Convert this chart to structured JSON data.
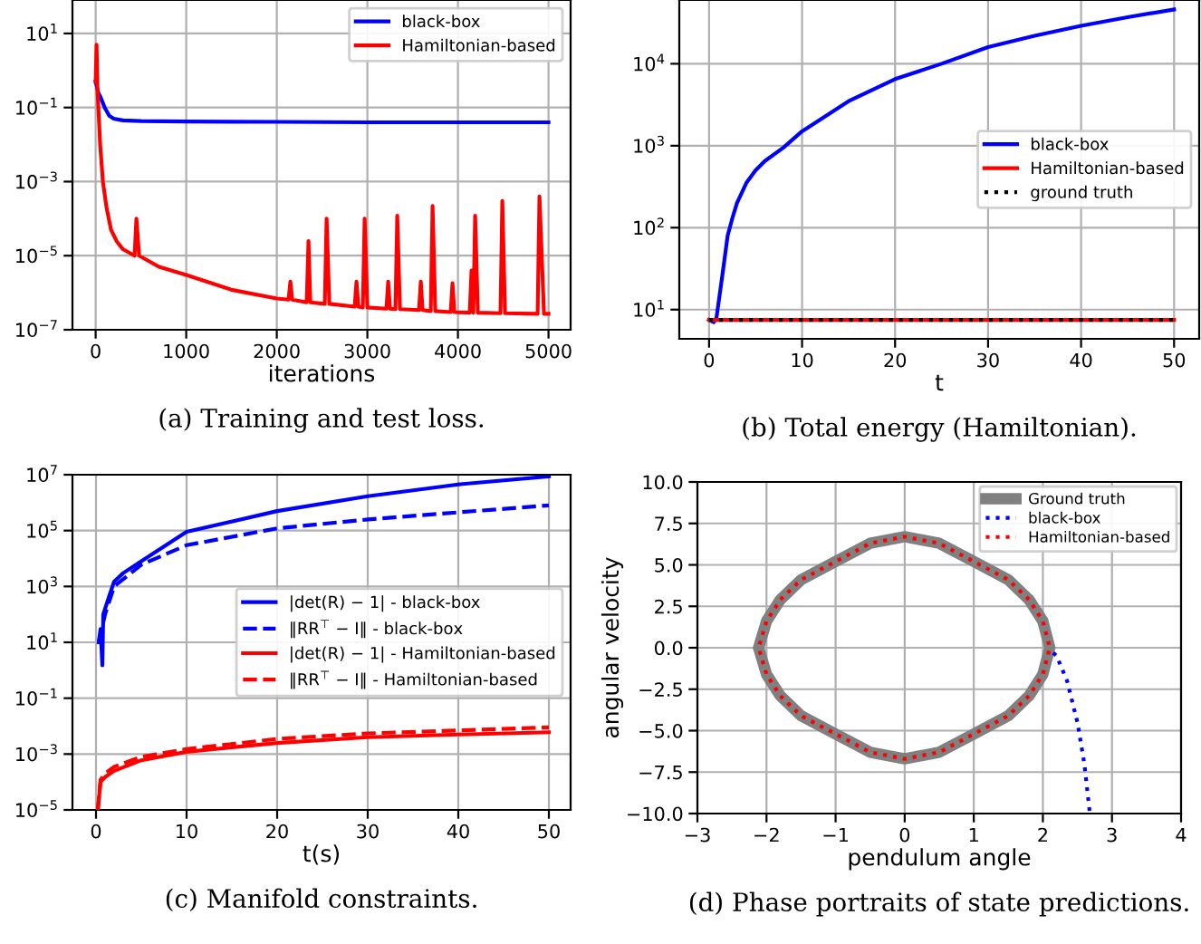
{
  "chart_data": [
    {
      "type": "line",
      "title": "(a) Training and test loss.",
      "xlabel": "iterations",
      "log": "y",
      "grid": true,
      "legend": "top right",
      "xlim": [
        -256,
        5244
      ],
      "ylim": [
        1e-07,
        80
      ],
      "xticks": [
        0,
        1000,
        2000,
        3000,
        4000,
        5000
      ],
      "yticks": [
        {
          "value": 1e-07,
          "label": "10$^{−7}$"
        },
        {
          "value": 1e-05,
          "label": "10$^{−5}$"
        },
        {
          "value": 0.001,
          "label": "10$^{−3}$"
        },
        {
          "value": 0.1,
          "label": "10$^{−1}$"
        },
        {
          "value": 10,
          "label": "10$^{1}$"
        }
      ],
      "series": [
        {
          "name": "black-box",
          "color": "#0000ff",
          "x": [
            0,
            30,
            50,
            100,
            150,
            200,
            300,
            500,
            1000,
            2000,
            3000,
            4000,
            5000
          ],
          "values": [
            0.5,
            0.25,
            0.2,
            0.1,
            0.06,
            0.05,
            0.045,
            0.043,
            0.042,
            0.041,
            0.04,
            0.04,
            0.04
          ]
        },
        {
          "name": "Hamiltonian-based",
          "color": "#ff0000",
          "x": [
            0,
            10,
            20,
            50,
            80,
            120,
            170,
            230,
            300,
            430,
            450,
            480,
            700,
            1000,
            1500,
            2000,
            2130,
            2150,
            2170,
            2330,
            2350,
            2370,
            2530,
            2550,
            2580,
            2860,
            2880,
            2900,
            2950,
            2970,
            3000,
            3210,
            3230,
            3250,
            3310,
            3330,
            3360,
            3570,
            3590,
            3610,
            3700,
            3720,
            3750,
            3920,
            3940,
            3960,
            4130,
            4150,
            4170,
            4190,
            4220,
            4470,
            4490,
            4520,
            4880,
            4900,
            4950,
            5000
          ],
          "values": [
            0.5,
            5,
            0.3,
            0.01,
            0.001,
            0.0002,
            5e-05,
            2.5e-05,
            1.5e-05,
            1e-05,
            0.0001,
            1e-05,
            5e-06,
            3e-06,
            1.2e-06,
            7e-07,
            6.5e-07,
            2e-06,
            6.5e-07,
            5.5e-07,
            2.5e-05,
            5.5e-07,
            5e-07,
            0.0001,
            5e-07,
            4.2e-07,
            2e-06,
            4.2e-07,
            4e-07,
            0.0001,
            4e-07,
            3.7e-07,
            2e-06,
            3.7e-07,
            3.6e-07,
            0.00012,
            3.6e-07,
            3.4e-07,
            2e-06,
            3.4e-07,
            3.2e-07,
            0.00022,
            3.2e-07,
            3e-07,
            1.8e-06,
            3e-07,
            2.9e-07,
            4e-06,
            2.9e-07,
            0.00012,
            2.9e-07,
            2.8e-07,
            0.0003,
            2.8e-07,
            2.7e-07,
            0.0004,
            2.7e-07,
            2.7e-07
          ]
        }
      ]
    },
    {
      "type": "line",
      "title": "(b) Total energy (Hamiltonian).",
      "xlabel": "t",
      "log": "y",
      "grid": true,
      "legend": "right",
      "xlim": [
        -3.2,
        52.7
      ],
      "ylim": [
        4.4,
        60000
      ],
      "xticks": [
        0,
        10,
        20,
        30,
        40,
        50
      ],
      "yticks": [
        {
          "value": 10,
          "label": "10$^{1}$"
        },
        {
          "value": 100,
          "label": "10$^{2}$"
        },
        {
          "value": 1000,
          "label": "10$^{3}$"
        },
        {
          "value": 10000,
          "label": "10$^{4}$"
        }
      ],
      "series": [
        {
          "name": "black-box",
          "color": "#0000ff",
          "x": [
            0,
            0.5,
            0.8,
            1.5,
            2,
            2.5,
            3,
            4,
            5,
            6,
            8,
            10,
            15,
            20,
            25,
            30,
            35,
            40,
            45,
            50
          ],
          "values": [
            7.5,
            7,
            8,
            30,
            80,
            130,
            200,
            350,
            500,
            650,
            950,
            1500,
            3500,
            6500,
            10000,
            16000,
            22000,
            29000,
            37000,
            46000
          ]
        },
        {
          "name": "Hamiltonian-based",
          "color": "#ff0000",
          "x": [
            0,
            50
          ],
          "values": [
            7.5,
            7.5
          ]
        },
        {
          "name": "ground truth",
          "color": "#000000",
          "line_style": "dotted",
          "x": [
            0,
            50
          ],
          "values": [
            7.5,
            7.5
          ]
        }
      ]
    },
    {
      "type": "line",
      "title": "(c) Manifold constraints.",
      "xlabel": "t(s)",
      "log": "y",
      "grid": true,
      "legend": "right",
      "xlim": [
        -2.6,
        52.4
      ],
      "ylim": [
        1e-05,
        10000000.0
      ],
      "xticks": [
        0,
        10,
        20,
        30,
        40,
        50
      ],
      "yticks": [
        {
          "value": 1e-05,
          "label": "10$^{−5}$"
        },
        {
          "value": 0.001,
          "label": "10$^{−3}$"
        },
        {
          "value": 0.1,
          "label": "10$^{−1}$"
        },
        {
          "value": 10,
          "label": "10$^{1}$"
        },
        {
          "value": 1000,
          "label": "10$^{3}$"
        },
        {
          "value": 100000,
          "label": "10$^{5}$"
        },
        {
          "value": 10000000,
          "label": "10$^{7}$"
        }
      ],
      "series": [
        {
          "name": "|det(R) − 1| - black-box",
          "color": "#0000ff",
          "line_style": "solid",
          "x": [
            0.3,
            0.5,
            0.7,
            0.8,
            1.5,
            2,
            3,
            5,
            10,
            20,
            30,
            40,
            50
          ],
          "values": [
            10,
            30,
            1.5,
            100,
            500,
            1500,
            3000,
            8000,
            90000,
            500000,
            1700000,
            4500000,
            8700000
          ]
        },
        {
          "name": "‖RR$^{⊤}$ − I‖ - black-box",
          "color": "#0000ff",
          "line_style": "dashed",
          "x": [
            0.3,
            1,
            2,
            5,
            10,
            20,
            30,
            40,
            50
          ],
          "values": [
            10,
            100,
            1000,
            6000,
            30000,
            120000,
            250000,
            450000,
            800000
          ]
        },
        {
          "name": "|det(R) − 1| - Hamiltonian-based",
          "color": "#ff0000",
          "line_style": "solid",
          "x": [
            0.2,
            0.5,
            1,
            2,
            5,
            10,
            20,
            30,
            40,
            50
          ],
          "values": [
            1e-05,
            0.0001,
            0.00015,
            0.00025,
            0.0006,
            0.0012,
            0.0025,
            0.004,
            0.005,
            0.006
          ]
        },
        {
          "name": "‖RR$^{⊤}$ − I‖ - Hamiltonian-based",
          "color": "#ff0000",
          "line_style": "dashed",
          "x": [
            0.2,
            0.5,
            1,
            2,
            5,
            10,
            20,
            30,
            40,
            50
          ],
          "values": [
            1e-05,
            0.00012,
            0.0002,
            0.00035,
            0.0008,
            0.0015,
            0.0035,
            0.0055,
            0.007,
            0.009
          ]
        }
      ]
    },
    {
      "type": "line",
      "title": "(d) Phase portraits of state predictions.",
      "xlabel": "pendulum angle",
      "ylabel": "angular velocity",
      "grid": true,
      "legend": "top right",
      "xlim": [
        -3,
        4
      ],
      "ylim": [
        -10,
        10
      ],
      "xticks": [
        {
          "value": -3,
          "label": "−3"
        },
        {
          "value": -2,
          "label": "−2"
        },
        {
          "value": -1,
          "label": "−1"
        },
        0,
        1,
        2,
        3,
        4
      ],
      "yticks": [
        {
          "value": -10,
          "label": "−10.0"
        },
        {
          "value": -7.5,
          "label": "−7.5"
        },
        {
          "value": -5,
          "label": "−5.0"
        },
        {
          "value": -2.5,
          "label": "−2.5"
        },
        {
          "value": 0,
          "label": "0.0"
        },
        {
          "value": 2.5,
          "label": "2.5"
        },
        {
          "value": 5,
          "label": "5.0"
        },
        {
          "value": 7.5,
          "label": "7.5"
        },
        {
          "value": 10,
          "label": "10.0"
        }
      ],
      "series": [
        {
          "name": "Ground truth",
          "color": "#808080",
          "line_style": "solid",
          "x": [
            -2.1,
            -2,
            -1.8,
            -1.5,
            -1,
            -0.5,
            0,
            0.5,
            1,
            1.5,
            1.8,
            2,
            2.1,
            2,
            1.8,
            1.5,
            1,
            0.5,
            0,
            -0.5,
            -1,
            -1.5,
            -1.8,
            -2,
            -2.1
          ],
          "values": [
            0.2,
            1.6,
            2.9,
            4.1,
            5.2,
            6.3,
            6.7,
            6.3,
            5.2,
            4.1,
            2.9,
            1.6,
            0,
            -1.6,
            -2.9,
            -4.1,
            -5.2,
            -6.3,
            -6.7,
            -6.3,
            -5.2,
            -4.1,
            -2.9,
            -1.6,
            -0.2
          ]
        },
        {
          "name": "black-box",
          "color": "#0000ff",
          "line_style": "dotted",
          "x": [
            2.15,
            2.2,
            2.35,
            2.5,
            2.6,
            2.68
          ],
          "values": [
            -0.3,
            -0.5,
            -2,
            -4.5,
            -7,
            -10
          ]
        },
        {
          "name": "Hamiltonian-based",
          "color": "#ff0000",
          "line_style": "dotted",
          "x": [
            -2.1,
            -2,
            -1.8,
            -1.5,
            -1,
            -0.5,
            0,
            0.5,
            1,
            1.5,
            1.8,
            2,
            2.1,
            2,
            1.8,
            1.5,
            1,
            0.5,
            0,
            -0.5,
            -1,
            -1.5,
            -1.8,
            -2,
            -2.1
          ],
          "values": [
            0.2,
            1.6,
            2.9,
            4.1,
            5.2,
            6.3,
            6.7,
            6.3,
            5.2,
            4.1,
            2.9,
            1.6,
            0,
            -1.6,
            -2.9,
            -4.1,
            -5.2,
            -6.3,
            -6.7,
            -6.3,
            -5.2,
            -4.1,
            -2.9,
            -1.6,
            -0.2
          ]
        }
      ]
    }
  ]
}
